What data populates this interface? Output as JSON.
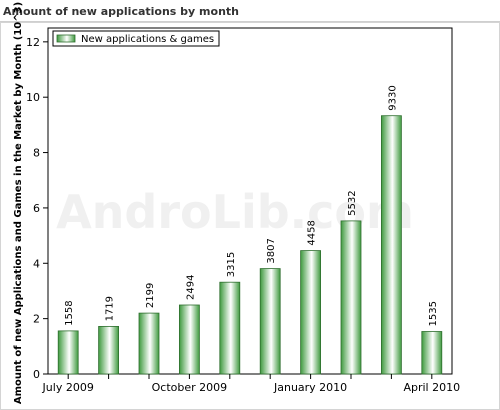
{
  "header": {
    "title": "Amount of new applications by month"
  },
  "chart_data": {
    "type": "bar",
    "title": "",
    "xlabel": "",
    "ylabel": "Amount of new Applications and Games in the Market by Month (10^3)",
    "watermark": "AndroLib.com",
    "series": [
      {
        "name": "New applications & games",
        "values": [
          1558,
          1719,
          2199,
          2494,
          3315,
          3807,
          4458,
          5532,
          9330,
          1535
        ]
      }
    ],
    "value_labels": [
      "1558",
      "1719",
      "2199",
      "2494",
      "3315",
      "3807",
      "4458",
      "5532",
      "9330",
      "1535"
    ],
    "x_tick_labels": [
      "July 2009",
      "October 2009",
      "January 2010",
      "April 2010"
    ],
    "x_tick_bar_index": [
      0,
      3,
      6,
      9
    ],
    "y_ticks": [
      0,
      2,
      4,
      6,
      8,
      10,
      12
    ],
    "ylim": [
      0,
      12.5
    ],
    "y_scale_divisor": 1000,
    "legend_position": "top-left",
    "grid": false,
    "colors": {
      "bar_dark": "#3f9a3f",
      "bar_light": "#ffffff",
      "bar_stroke": "#2e6e2e",
      "axis": "#000000",
      "watermark": "#f0f0f0"
    }
  }
}
